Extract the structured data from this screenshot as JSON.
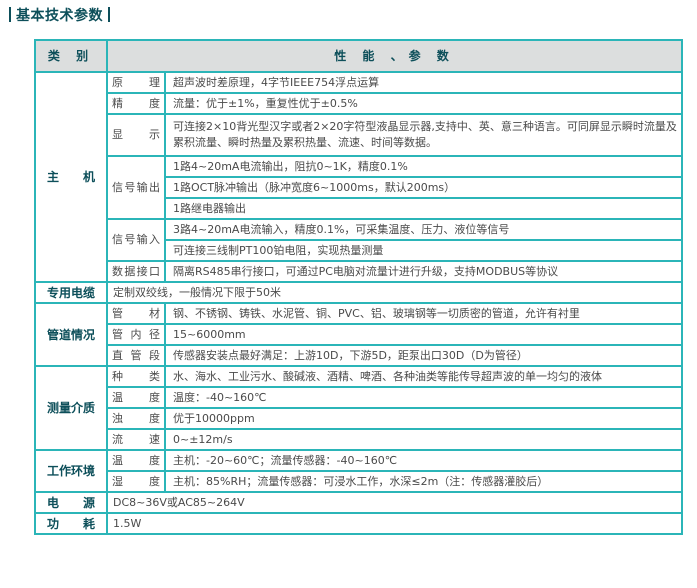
{
  "title": "基本技术参数",
  "header": {
    "category": "类 别",
    "params": "性 能 、参 数"
  },
  "colors": {
    "border": "#2bb5b8",
    "header_bg": "#dcdede",
    "category_text": "#0d4f5a"
  },
  "groups": [
    {
      "category": "主　　机",
      "items": [
        {
          "label": "原　　理",
          "values": [
            "超声波时差原理，4字节IEEE754浮点运算"
          ]
        },
        {
          "label": "精　　度",
          "values": [
            "流量：优于±1%，重复性优于±0.5%"
          ]
        },
        {
          "label": "显　　示",
          "values": [
            "可连接2×10背光型汉字或者2×20字符型液晶显示器,支持中、英、意三种语言。可同屏显示瞬时流量及累积流量、瞬时热量及累积热量、流速、时间等数据。"
          ]
        },
        {
          "label": "信号输出",
          "values": [
            "1路4~20mA电流输出，阻抗0~1K，精度0.1%",
            "1路OCT脉冲输出（脉冲宽度6~1000ms，默认200ms）",
            "1路继电器输出"
          ]
        },
        {
          "label": "信号输入",
          "values": [
            "3路4~20mA电流输入，精度0.1%，可采集温度、压力、液位等信号",
            "可连接三线制PT100铂电阻，实现热量测量"
          ]
        },
        {
          "label": "数据接口",
          "values": [
            "隔离RS485串行接口，可通过PC电脑对流量计进行升级，支持MODBUS等协议"
          ]
        }
      ]
    },
    {
      "category": "专用电缆",
      "value": "定制双绞线，一般情况下限于50米"
    },
    {
      "category": "管道情况",
      "items": [
        {
          "label": "管　　材",
          "values": [
            "钢、不锈钢、铸铁、水泥管、铜、PVC、铝、玻璃钢等一切质密的管道，允许有衬里"
          ]
        },
        {
          "label": "管内径",
          "values": [
            "15~6000mm"
          ]
        },
        {
          "label": "直管段",
          "values": [
            "传感器安装点最好满足：上游10D，下游5D，距泵出口30D（D为管径）"
          ]
        }
      ]
    },
    {
      "category": "测量介质",
      "items": [
        {
          "label": "种　　类",
          "values": [
            "水、海水、工业污水、酸碱液、酒精、啤酒、各种油类等能传导超声波的单一均匀的液体"
          ]
        },
        {
          "label": "温　　度",
          "values": [
            "温度：-40~160℃"
          ]
        },
        {
          "label": "浊　　度",
          "values": [
            "优于10000ppm"
          ]
        },
        {
          "label": "流　　速",
          "values": [
            "0~±12m/s"
          ]
        }
      ]
    },
    {
      "category": "工作环境",
      "items": [
        {
          "label": "温　　度",
          "values": [
            "主机：-20~60℃；流量传感器：-40~160℃"
          ]
        },
        {
          "label": "湿　　度",
          "values": [
            "主机：85%RH；流量传感器：可浸水工作，水深≤2m（注：传感器灌胶后）"
          ]
        }
      ]
    },
    {
      "category": "电　　源",
      "value": "DC8~36V或AC85~264V"
    },
    {
      "category": "功　　耗",
      "value": "1.5W"
    }
  ]
}
